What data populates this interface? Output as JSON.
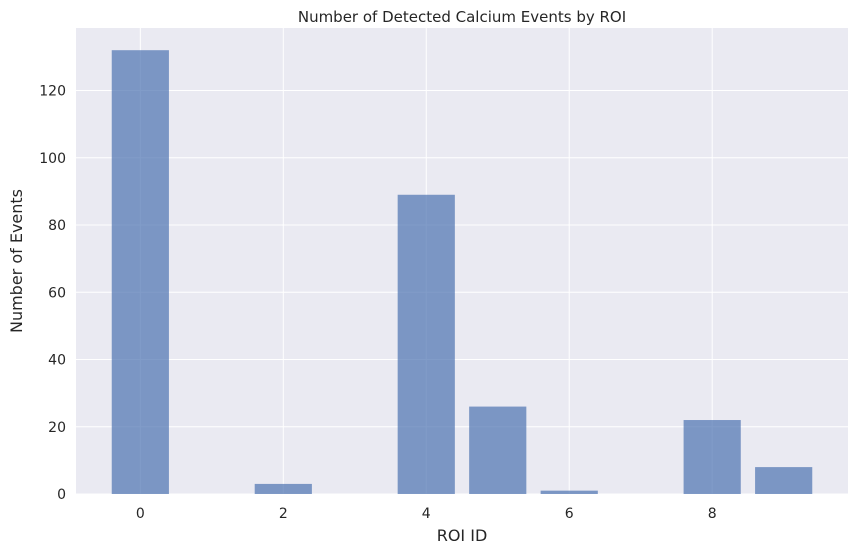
{
  "chart_data": {
    "type": "bar",
    "title": "Number of Detected Calcium Events by ROI",
    "xlabel": "ROI ID",
    "ylabel": "Number of Events",
    "x": [
      0,
      1,
      2,
      3,
      4,
      5,
      6,
      7,
      8,
      9
    ],
    "values": [
      132,
      0,
      3,
      0,
      89,
      26,
      1,
      0,
      22,
      8
    ],
    "xticks": [
      "0",
      "2",
      "4",
      "6",
      "8"
    ],
    "yticks": [
      "0",
      "20",
      "40",
      "60",
      "80",
      "100",
      "120"
    ],
    "xlim": [
      -0.9,
      9.9
    ],
    "ylim": [
      0,
      138.6
    ],
    "grid": true,
    "colors": {
      "bar": "#4c72b0",
      "plot_bg": "#eaeaf2",
      "grid": "#ffffff",
      "text": "#262626"
    }
  }
}
